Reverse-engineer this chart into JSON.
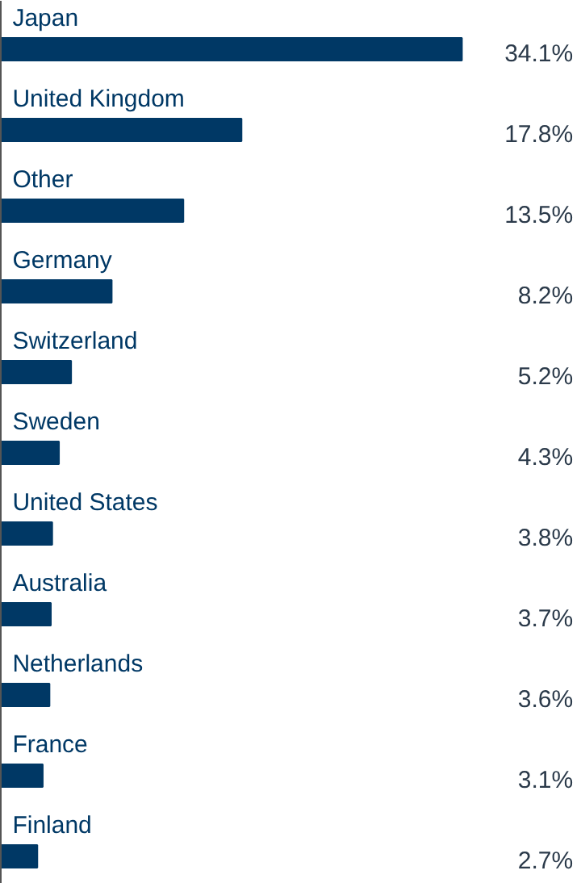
{
  "chart_data": {
    "type": "bar",
    "orientation": "horizontal",
    "categories": [
      "Japan",
      "United Kingdom",
      "Other",
      "Germany",
      "Switzerland",
      "Sweden",
      "United States",
      "Australia",
      "Netherlands",
      "France",
      "Finland"
    ],
    "values": [
      34.1,
      17.8,
      13.5,
      8.2,
      5.2,
      4.3,
      3.8,
      3.7,
      3.6,
      3.1,
      2.7
    ],
    "value_labels": [
      "34.1%",
      "17.8%",
      "13.5%",
      "8.2%",
      "5.2%",
      "4.3%",
      "3.8%",
      "3.7%",
      "3.6%",
      "3.1%",
      "2.7%"
    ],
    "color": "#003865"
  }
}
